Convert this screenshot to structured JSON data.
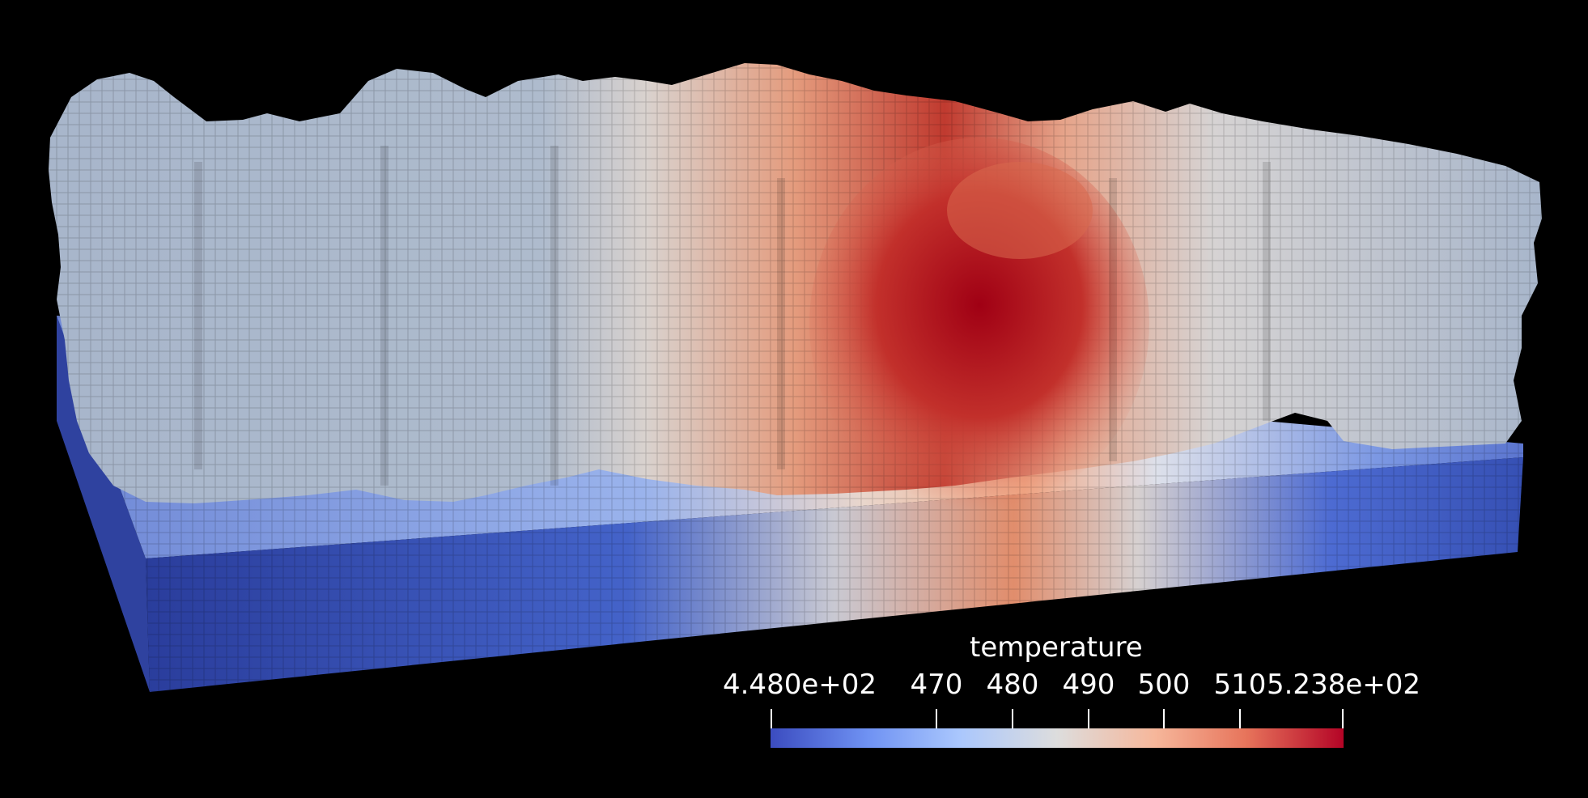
{
  "colorbar": {
    "title": "temperature",
    "min_label": "4.480e+02",
    "max_label": "5.238e+02",
    "range": [
      448.0,
      523.8
    ],
    "ticks": [
      {
        "value": 470,
        "label": "470"
      },
      {
        "value": 480,
        "label": "480"
      },
      {
        "value": 490,
        "label": "490"
      },
      {
        "value": 500,
        "label": "500"
      },
      {
        "value": 510,
        "label": "510"
      }
    ],
    "colormap": [
      "#3b4cc0",
      "#6f92f3",
      "#aac7fd",
      "#dddddd",
      "#f6b79b",
      "#e7745b",
      "#b40426"
    ]
  },
  "colors": {
    "background": "#000000",
    "part_default": "#a9b7cb",
    "hot_core": "#b10a1c",
    "substrate_cold": "#344aa8"
  }
}
